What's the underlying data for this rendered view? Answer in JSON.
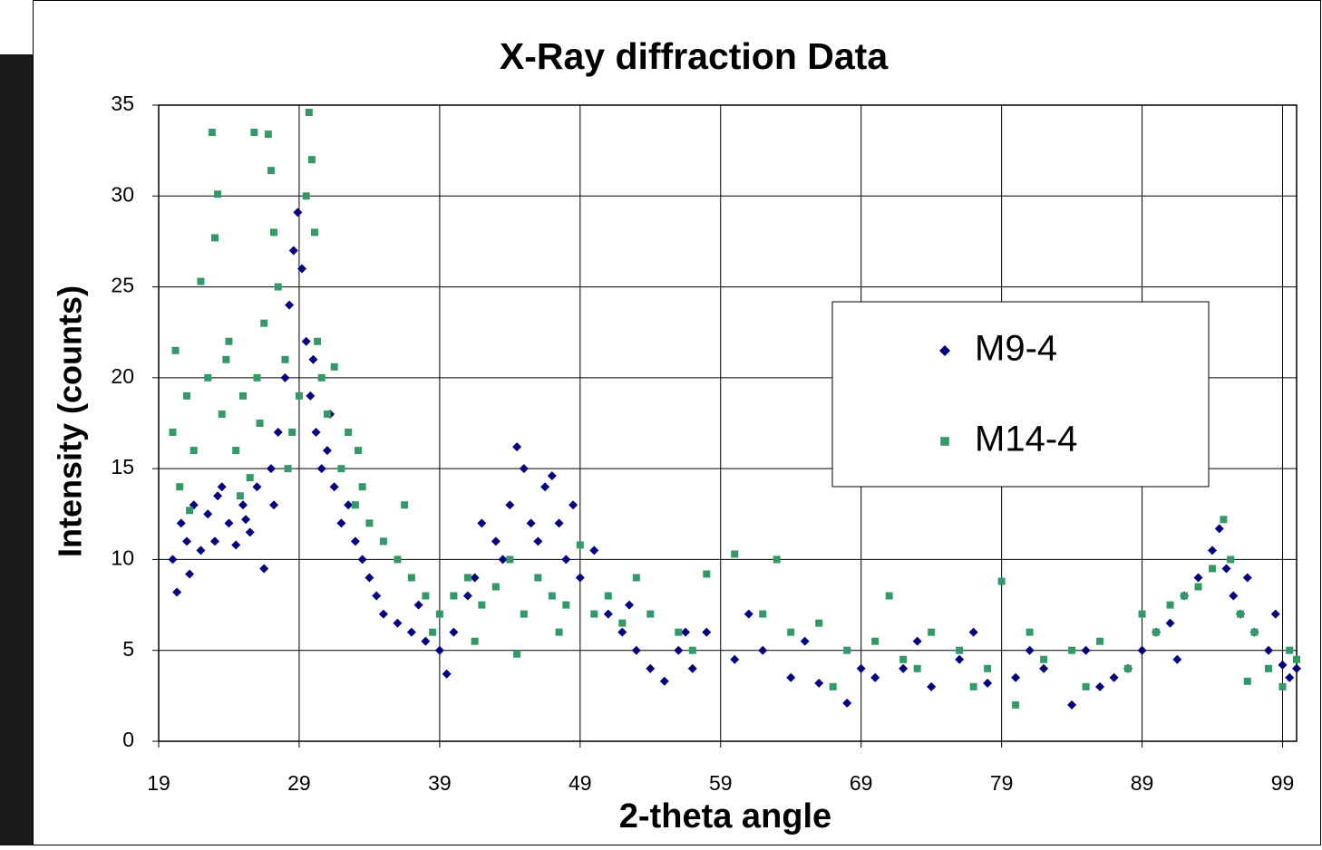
{
  "chart_data": {
    "type": "scatter",
    "title": "X-Ray diffraction Data",
    "x_label": "2-theta angle",
    "y_label": "Intensity (counts)",
    "xlim": [
      19,
      100
    ],
    "ylim": [
      0,
      35
    ],
    "xticks": [
      19,
      29,
      39,
      49,
      59,
      69,
      79,
      89,
      99
    ],
    "yticks": [
      0,
      5,
      10,
      15,
      20,
      25,
      30,
      35
    ],
    "grid": true,
    "series": [
      {
        "name": "M9-4",
        "color": "#000080",
        "marker": "diamond",
        "x": [
          20.0,
          20.3,
          20.6,
          21.0,
          21.5,
          22.0,
          22.5,
          23.0,
          23.5,
          24.0,
          24.5,
          25.0,
          25.5,
          26.0,
          26.5,
          27.0,
          27.5,
          28.0,
          28.3,
          28.6,
          28.9,
          29.2,
          29.5,
          29.8,
          30.2,
          30.6,
          31.0,
          31.5,
          32.0,
          32.5,
          33.0,
          33.5,
          34.0,
          34.5,
          35.0,
          36.0,
          37.0,
          38.0,
          39.0,
          39.5,
          40.0,
          41.0,
          42.0,
          43.0,
          44.0,
          44.5,
          45.0,
          45.5,
          46.0,
          46.5,
          47.0,
          47.5,
          48.0,
          49.0,
          50.0,
          51.0,
          52.0,
          53.0,
          54.0,
          55.0,
          56.0,
          57.0,
          58.0,
          60.0,
          62.0,
          64.0,
          66.0,
          68.0,
          70.0,
          72.0,
          74.0,
          76.0,
          78.0,
          80.0,
          82.0,
          84.0,
          86.0,
          88.0,
          89.0,
          90.0,
          91.0,
          92.0,
          93.0,
          94.0,
          94.5,
          95.0,
          95.5,
          96.0,
          97.0,
          98.0,
          99.0,
          99.5,
          100.0,
          21.2,
          23.2,
          25.2,
          27.2,
          30.0,
          31.2,
          37.5,
          41.5,
          43.5,
          48.5,
          52.5,
          56.5,
          61.0,
          65.0,
          69.0,
          73.0,
          77.0,
          81.0,
          85.0,
          87.0,
          91.5,
          96.5,
          98.5
        ],
        "values": [
          10,
          8.2,
          12,
          11,
          13,
          10.5,
          12.5,
          11,
          14,
          12,
          10.8,
          13,
          11.5,
          14,
          9.5,
          15,
          17,
          20,
          24,
          27,
          29.1,
          26,
          22,
          19,
          17,
          15,
          16,
          14,
          12,
          13,
          11,
          10,
          9,
          8,
          7,
          6.5,
          6,
          5.5,
          5,
          3.7,
          6,
          8,
          12,
          11,
          13,
          16.2,
          15,
          12,
          11,
          14,
          14.6,
          12,
          10,
          9,
          10.5,
          7,
          6,
          5,
          4,
          3.3,
          5,
          4,
          6,
          4.5,
          5,
          3.5,
          3.2,
          2.1,
          3.5,
          4,
          3,
          4.5,
          3.2,
          3.5,
          4,
          2,
          3,
          4,
          5,
          6,
          6.5,
          8,
          9,
          10.5,
          11.7,
          9.5,
          8,
          7,
          6,
          5,
          4.2,
          3.5,
          4,
          9.2,
          13.5,
          12.2,
          13,
          21,
          18,
          7.5,
          9,
          10,
          13,
          7.5,
          6,
          7,
          5.5,
          4,
          5.5,
          6,
          5,
          5,
          3.5,
          4.5,
          9,
          7
        ]
      },
      {
        "name": "M14-4",
        "color": "#339966",
        "marker": "square",
        "x": [
          20.0,
          20.2,
          20.5,
          21.0,
          21.5,
          22.0,
          22.5,
          22.8,
          23.0,
          23.2,
          23.5,
          24.0,
          24.5,
          25.0,
          25.5,
          25.8,
          26.0,
          26.5,
          26.8,
          27.0,
          27.2,
          27.5,
          28.0,
          28.5,
          29.0,
          29.5,
          29.7,
          29.9,
          30.1,
          30.3,
          30.6,
          31.0,
          31.5,
          32.0,
          32.5,
          33.0,
          33.5,
          34.0,
          35.0,
          36.0,
          37.0,
          38.0,
          39.0,
          40.0,
          41.0,
          42.0,
          43.0,
          44.0,
          45.0,
          46.0,
          47.0,
          48.0,
          49.0,
          50.0,
          51.0,
          52.0,
          54.0,
          56.0,
          58.0,
          60.0,
          62.0,
          64.0,
          66.0,
          68.0,
          70.0,
          71.0,
          72.0,
          74.0,
          76.0,
          78.0,
          79.0,
          80.0,
          82.0,
          84.0,
          86.0,
          88.0,
          90.0,
          91.0,
          92.0,
          93.0,
          94.0,
          94.8,
          95.3,
          96.0,
          97.0,
          98.0,
          99.0,
          99.5,
          100.0,
          21.2,
          23.8,
          24.8,
          26.2,
          28.2,
          33.2,
          36.5,
          38.5,
          41.5,
          44.5,
          47.5,
          53.0,
          57.0,
          63.0,
          67.0,
          73.0,
          77.0,
          81.0,
          85.0,
          89.0,
          96.5
        ],
        "values": [
          17,
          21.5,
          14,
          19,
          16,
          25.3,
          20,
          33.5,
          27.7,
          30.1,
          18,
          22,
          16,
          19,
          14.5,
          33.5,
          20,
          23,
          33.4,
          31.4,
          28,
          25,
          21,
          17,
          19,
          30,
          34.6,
          32,
          28,
          22,
          20,
          18,
          20.6,
          15,
          17,
          13,
          14,
          12,
          11,
          10,
          9,
          8,
          7,
          8,
          9,
          7.5,
          8.5,
          10,
          7,
          9,
          8,
          7.5,
          10.8,
          7,
          8,
          6.5,
          7,
          6,
          9.2,
          10.3,
          7,
          6,
          6.5,
          5,
          5.5,
          8,
          4.5,
          6,
          5,
          4,
          8.8,
          2,
          4.5,
          5,
          5.5,
          4,
          6,
          7.5,
          8,
          8.5,
          9.5,
          12.2,
          10,
          7,
          6,
          4,
          3,
          5,
          4.5,
          12.7,
          21,
          13.5,
          17.5,
          15,
          16,
          13,
          6,
          5.5,
          4.8,
          6,
          9,
          5,
          10,
          3,
          4,
          3,
          6,
          3,
          7,
          3.3
        ]
      }
    ]
  }
}
